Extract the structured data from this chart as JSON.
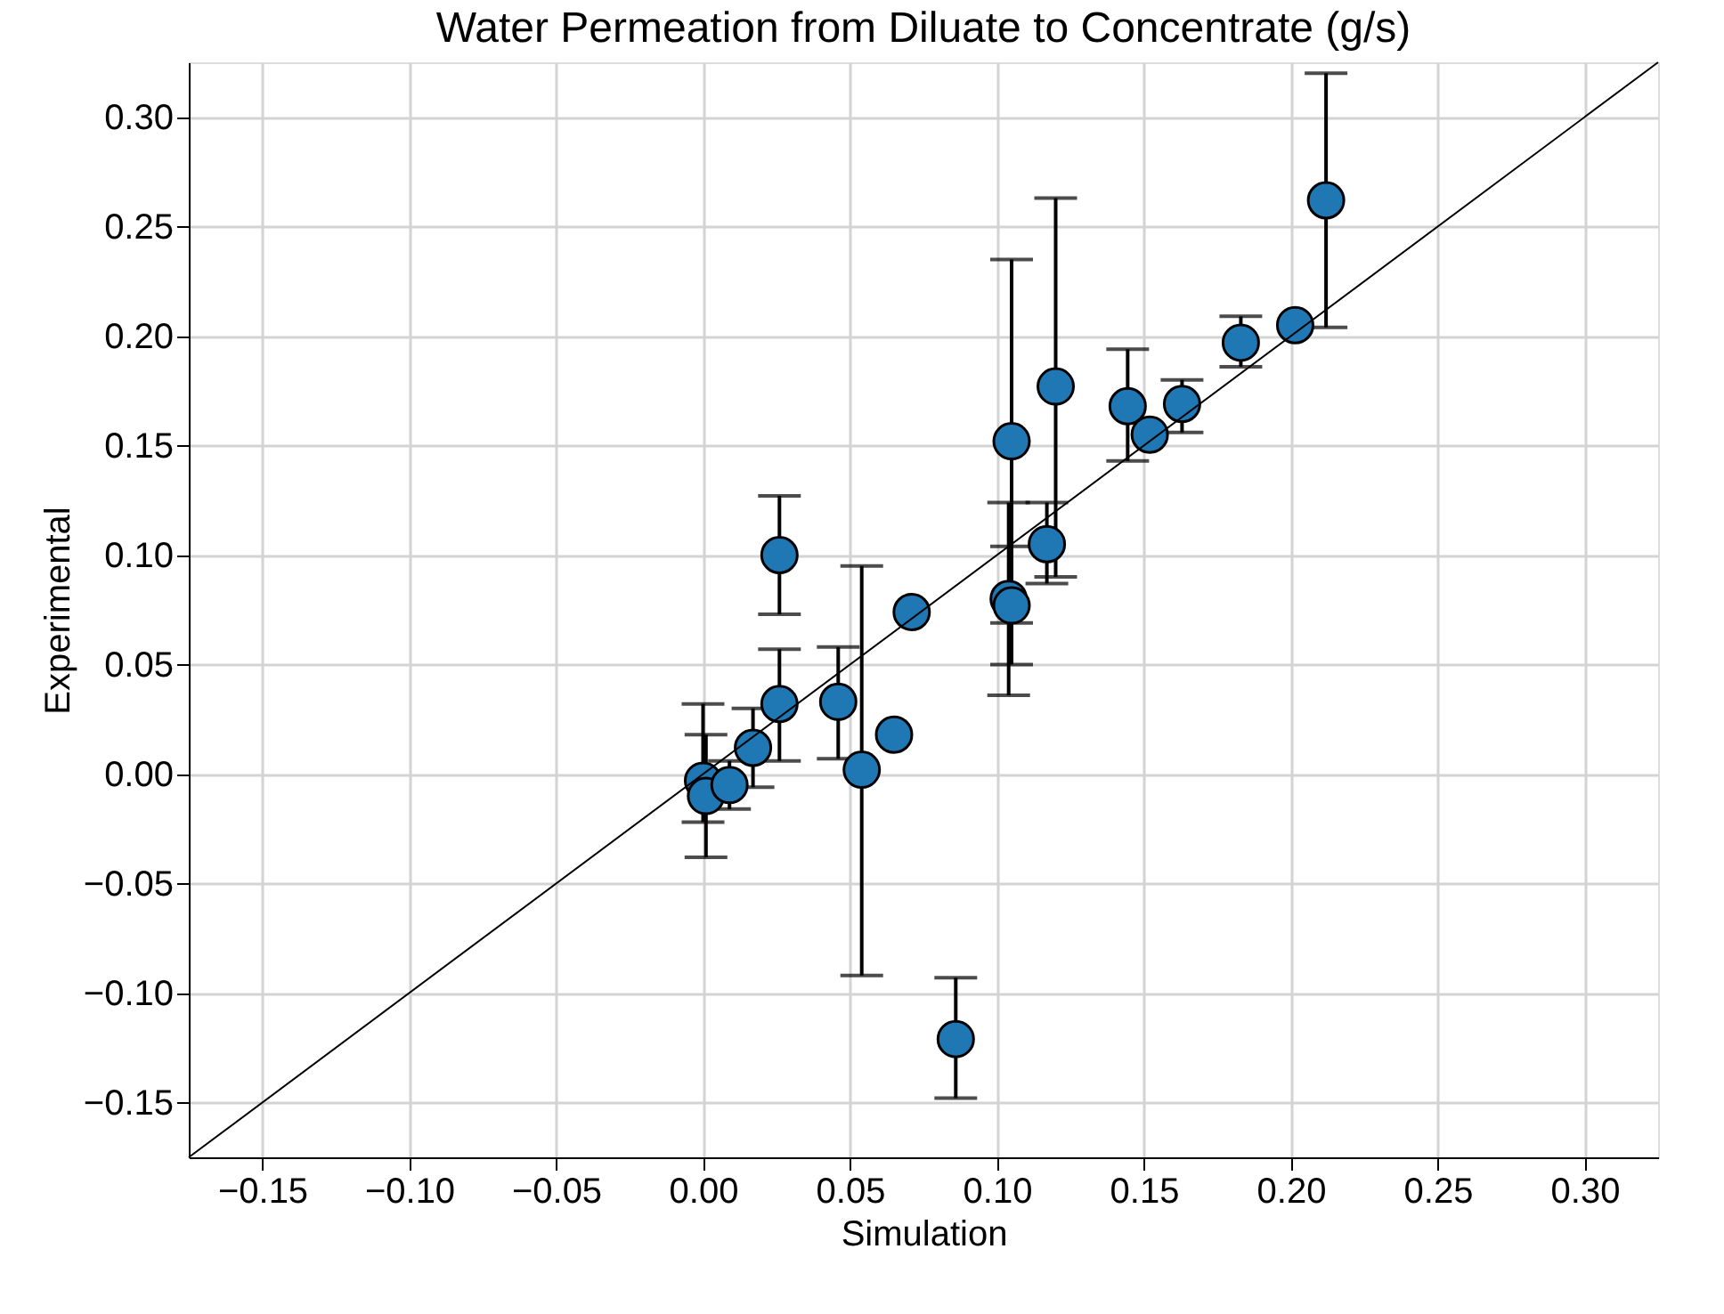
{
  "chart_data": {
    "type": "scatter",
    "title": "Water Permeation from Diluate to Concentrate (g/s)",
    "xlabel": "Simulation",
    "ylabel": "Experimental",
    "xlim": [
      -0.175,
      0.325
    ],
    "ylim": [
      -0.175,
      0.325
    ],
    "xticks": [
      {
        "value": -0.15,
        "label": "−0.15"
      },
      {
        "value": -0.1,
        "label": "−0.10"
      },
      {
        "value": -0.05,
        "label": "−0.05"
      },
      {
        "value": 0,
        "label": "0.00"
      },
      {
        "value": 0.05,
        "label": "0.05"
      },
      {
        "value": 0.1,
        "label": "0.10"
      },
      {
        "value": 0.15,
        "label": "0.15"
      },
      {
        "value": 0.2,
        "label": "0.20"
      },
      {
        "value": 0.25,
        "label": "0.25"
      },
      {
        "value": 0.3,
        "label": "0.30"
      }
    ],
    "yticks": [
      {
        "value": -0.15,
        "label": "−0.15"
      },
      {
        "value": -0.1,
        "label": "−0.10"
      },
      {
        "value": -0.05,
        "label": "−0.05"
      },
      {
        "value": 0,
        "label": "0.00"
      },
      {
        "value": 0.05,
        "label": "0.05"
      },
      {
        "value": 0.1,
        "label": "0.10"
      },
      {
        "value": 0.15,
        "label": "0.15"
      },
      {
        "value": 0.2,
        "label": "0.20"
      },
      {
        "value": 0.25,
        "label": "0.25"
      },
      {
        "value": 0.3,
        "label": "0.30"
      }
    ],
    "grid": true,
    "marker": "circle",
    "series": [
      {
        "color": "#1f77b4",
        "x": [
          0.0,
          0.001,
          0.009,
          0.017,
          0.026,
          0.026,
          0.046,
          0.054,
          0.065,
          0.071,
          0.086,
          0.105,
          0.104,
          0.105,
          0.117,
          0.12,
          0.1445,
          0.152,
          0.163,
          0.183,
          0.2015,
          0.212
        ],
        "values": [
          -0.003,
          -0.01,
          -0.005,
          0.012,
          0.032,
          0.1,
          0.033,
          0.002,
          0.018,
          0.074,
          -0.121,
          0.152,
          0.08,
          0.077,
          0.105,
          0.177,
          0.168,
          0.155,
          0.169,
          0.197,
          0.205,
          0.262
        ],
        "errors": [
          [
            -0.022,
            0.032
          ],
          [
            -0.038,
            0.018
          ],
          [
            -0.016,
            0.006
          ],
          [
            -0.006,
            0.03
          ],
          [
            0.006,
            0.057
          ],
          [
            0.073,
            0.127
          ],
          [
            0.007,
            0.058
          ],
          [
            -0.092,
            0.095
          ],
          null,
          null,
          [
            -0.148,
            -0.093
          ],
          [
            0.069,
            0.235
          ],
          [
            0.036,
            0.124
          ],
          [
            0.05,
            0.104
          ],
          [
            0.087,
            0.124
          ],
          [
            0.09,
            0.263
          ],
          [
            0.143,
            0.194
          ],
          null,
          [
            0.156,
            0.18
          ],
          [
            0.186,
            0.209
          ],
          null,
          [
            0.204,
            0.32
          ]
        ]
      },
      {
        "type": "line",
        "marker": "none",
        "color": "#000000",
        "x": [
          -0.175,
          0.325
        ],
        "values": [
          -0.175,
          0.325
        ]
      }
    ]
  }
}
